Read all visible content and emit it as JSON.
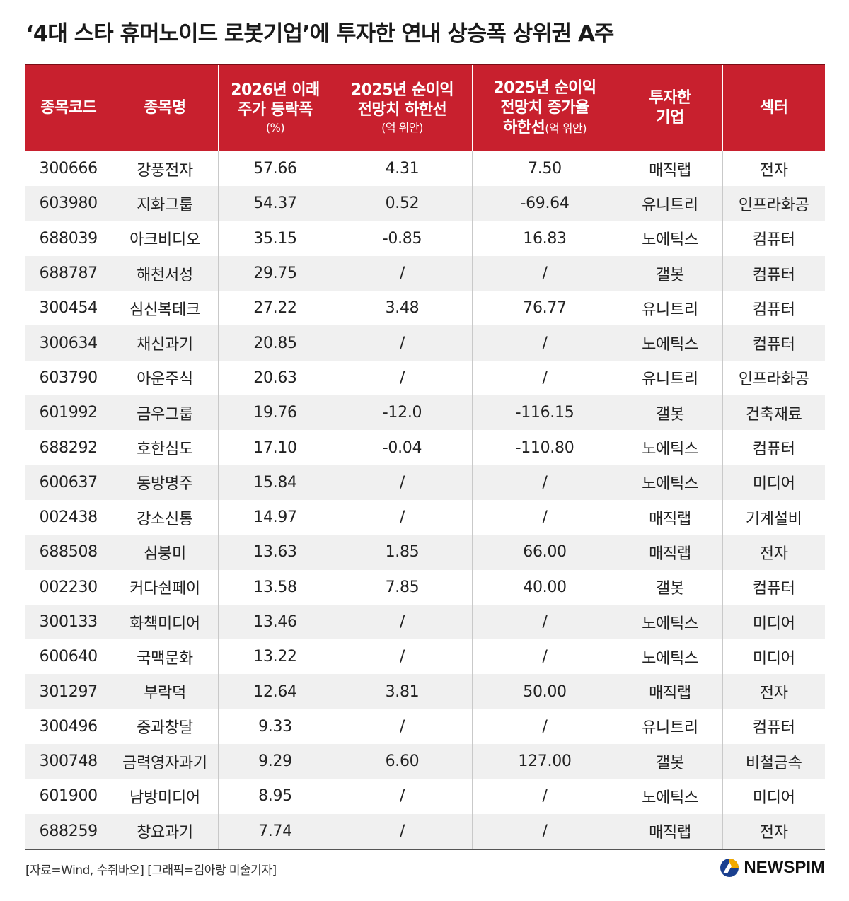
{
  "title": "‘4대 스타 휴머노이드 로봇기업’에 투자한 연내 상승폭 상위권 A주",
  "header": {
    "code": "종목코드",
    "name": "종목명",
    "change_l1": "2026년 이래",
    "change_l2": "주가 등락폭",
    "change_unit": "(%)",
    "profit_l1": "2025년 순이익",
    "profit_l2": "전망치 하한선",
    "profit_unit": "(억 위안)",
    "growth_l1": "2025년 순이익",
    "growth_l2": "전망치 증가율",
    "growth_l3": "하한선",
    "growth_unit": "(억 위안)",
    "investor_l1": "투자한",
    "investor_l2": "기업",
    "sector": "섹터"
  },
  "rows": [
    {
      "code": "300666",
      "name": "강풍전자",
      "change": "57.66",
      "profit": "4.31",
      "growth": "7.50",
      "investor": "매직랩",
      "sector": "전자"
    },
    {
      "code": "603980",
      "name": "지화그룹",
      "change": "54.37",
      "profit": "0.52",
      "growth": "-69.64",
      "investor": "유니트리",
      "sector": "인프라화공"
    },
    {
      "code": "688039",
      "name": "아크비디오",
      "change": "35.15",
      "profit": "-0.85",
      "growth": "16.83",
      "investor": "노에틱스",
      "sector": "컴퓨터"
    },
    {
      "code": "688787",
      "name": "해천서성",
      "change": "29.75",
      "profit": "/",
      "growth": "/",
      "investor": "갤봇",
      "sector": "컴퓨터"
    },
    {
      "code": "300454",
      "name": "심신복테크",
      "change": "27.22",
      "profit": "3.48",
      "growth": "76.77",
      "investor": "유니트리",
      "sector": "컴퓨터"
    },
    {
      "code": "300634",
      "name": "채신과기",
      "change": "20.85",
      "profit": "/",
      "growth": "/",
      "investor": "노에틱스",
      "sector": "컴퓨터"
    },
    {
      "code": "603790",
      "name": "아운주식",
      "change": "20.63",
      "profit": "/",
      "growth": "/",
      "investor": "유니트리",
      "sector": "인프라화공"
    },
    {
      "code": "601992",
      "name": "금우그룹",
      "change": "19.76",
      "profit": "-12.0",
      "growth": "-116.15",
      "investor": "갤봇",
      "sector": "건축재료"
    },
    {
      "code": "688292",
      "name": "호한심도",
      "change": "17.10",
      "profit": "-0.04",
      "growth": "-110.80",
      "investor": "노에틱스",
      "sector": "컴퓨터"
    },
    {
      "code": "600637",
      "name": "동방명주",
      "change": "15.84",
      "profit": "/",
      "growth": "/",
      "investor": "노에틱스",
      "sector": "미디어"
    },
    {
      "code": "002438",
      "name": "강소신통",
      "change": "14.97",
      "profit": "/",
      "growth": "/",
      "investor": "매직랩",
      "sector": "기계설비"
    },
    {
      "code": "688508",
      "name": "심붕미",
      "change": "13.63",
      "profit": "1.85",
      "growth": "66.00",
      "investor": "매직랩",
      "sector": "전자"
    },
    {
      "code": "002230",
      "name": "커다쉰페이",
      "change": "13.58",
      "profit": "7.85",
      "growth": "40.00",
      "investor": "갤봇",
      "sector": "컴퓨터"
    },
    {
      "code": "300133",
      "name": "화책미디어",
      "change": "13.46",
      "profit": "/",
      "growth": "/",
      "investor": "노에틱스",
      "sector": "미디어"
    },
    {
      "code": "600640",
      "name": "국맥문화",
      "change": "13.22",
      "profit": "/",
      "growth": "/",
      "investor": "노에틱스",
      "sector": "미디어"
    },
    {
      "code": "301297",
      "name": "부락덕",
      "change": "12.64",
      "profit": "3.81",
      "growth": "50.00",
      "investor": "매직랩",
      "sector": "전자"
    },
    {
      "code": "300496",
      "name": "중과창달",
      "change": "9.33",
      "profit": "/",
      "growth": "/",
      "investor": "유니트리",
      "sector": "컴퓨터"
    },
    {
      "code": "300748",
      "name": "금력영자과기",
      "change": "9.29",
      "profit": "6.60",
      "growth": "127.00",
      "investor": "갤봇",
      "sector": "비철금속"
    },
    {
      "code": "601900",
      "name": "남방미디어",
      "change": "8.95",
      "profit": "/",
      "growth": "/",
      "investor": "노에틱스",
      "sector": "미디어"
    },
    {
      "code": "688259",
      "name": "창요과기",
      "change": "7.74",
      "profit": "/",
      "growth": "/",
      "investor": "매직랩",
      "sector": "전자"
    }
  ],
  "footer": {
    "source": "[자료=Wind, 수쥐바오] [그래픽=김아랑 미술기자]",
    "logo_text": "NEWSPIM"
  },
  "colors": {
    "header_bg": "#c8202e",
    "header_text": "#ffffff",
    "stripe": "#f0f0f0"
  }
}
